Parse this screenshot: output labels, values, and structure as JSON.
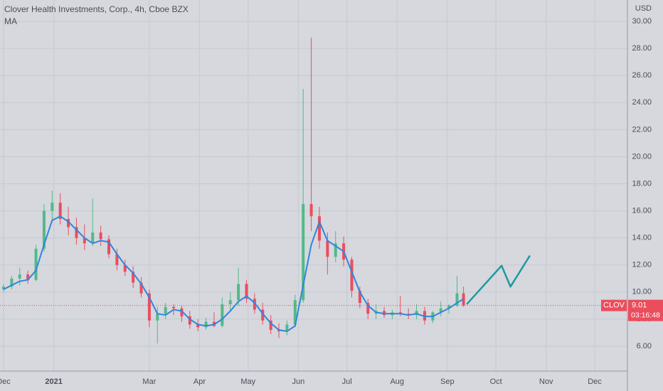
{
  "chart_data": {
    "type": "candlestick",
    "title": "Clover Health Investments, Corp., 4h, Cboe BZX",
    "currency": "USD",
    "xlim": [
      -2.2,
      385.2
    ],
    "ylim": [
      4.16,
      31.58
    ],
    "xticks": [
      {
        "value": 0,
        "label": "Dec"
      },
      {
        "value": 31,
        "label": "2021"
      },
      {
        "value": 90,
        "label": "Mar"
      },
      {
        "value": 121,
        "label": "Apr"
      },
      {
        "value": 151,
        "label": "May"
      },
      {
        "value": 182,
        "label": "Jun"
      },
      {
        "value": 212,
        "label": "Jul"
      },
      {
        "value": 243,
        "label": "Aug"
      },
      {
        "value": 274,
        "label": "Sep"
      },
      {
        "value": 304,
        "label": "Oct"
      },
      {
        "value": 335,
        "label": "Nov"
      },
      {
        "value": 365,
        "label": "Dec"
      }
    ],
    "yticks": [
      {
        "value": 6,
        "label": "6.00"
      },
      {
        "value": 8,
        "label": "8.00"
      },
      {
        "value": 10,
        "label": "10.00"
      },
      {
        "value": 12,
        "label": "12.00"
      },
      {
        "value": 14,
        "label": "14.00"
      },
      {
        "value": 16,
        "label": "16.00"
      },
      {
        "value": 18,
        "label": "18.00"
      },
      {
        "value": 20,
        "label": "20.00"
      },
      {
        "value": 22,
        "label": "22.00"
      },
      {
        "value": 24,
        "label": "24.00"
      },
      {
        "value": 26,
        "label": "26.00"
      },
      {
        "value": 28,
        "label": "28.00"
      },
      {
        "value": 30,
        "label": "30.00"
      }
    ],
    "grid": true,
    "up_color": "#53b987",
    "down_color": "#eb4d5c",
    "last_price": 9.01,
    "countdown": "03:16:48",
    "series": [
      {
        "name": "CLOV",
        "x": [
          0,
          5,
          10,
          15,
          20,
          25,
          30,
          35,
          40,
          45,
          50,
          55,
          60,
          65,
          70,
          75,
          80,
          85,
          90,
          95,
          100,
          105,
          110,
          115,
          120,
          125,
          130,
          135,
          140,
          145,
          150,
          155,
          160,
          165,
          170,
          175,
          180,
          185,
          190,
          195,
          200,
          205,
          210,
          215,
          220,
          225,
          230,
          235,
          240,
          245,
          250,
          255,
          260,
          265,
          270,
          275,
          280,
          284
        ],
        "open": [
          10.2,
          10.4,
          11.0,
          11.3,
          10.9,
          13.2,
          16.0,
          16.6,
          15.4,
          14.8,
          14.0,
          13.6,
          14.4,
          13.9,
          12.8,
          12.0,
          11.5,
          10.7,
          9.9,
          7.9,
          8.4,
          8.9,
          8.8,
          8.2,
          7.6,
          7.4,
          7.8,
          7.5,
          9.1,
          9.4,
          10.6,
          9.5,
          8.7,
          7.9,
          7.2,
          7.1,
          7.6,
          9.4,
          16.5,
          15.6,
          13.8,
          12.6,
          13.6,
          12.4,
          10.1,
          9.2,
          8.4,
          8.6,
          8.3,
          8.5,
          8.4,
          8.3,
          8.6,
          7.9,
          8.5,
          8.8,
          9.0,
          9.9
        ],
        "high": [
          10.6,
          11.2,
          11.8,
          11.6,
          13.5,
          16.5,
          17.5,
          17.3,
          16.3,
          15.5,
          15.0,
          16.9,
          14.9,
          14.2,
          13.2,
          12.4,
          11.9,
          11.1,
          10.2,
          8.9,
          9.2,
          9.1,
          9.0,
          8.6,
          8.0,
          8.1,
          8.5,
          9.6,
          10.0,
          11.8,
          10.9,
          9.9,
          9.2,
          8.3,
          7.7,
          7.9,
          9.8,
          25.0,
          28.8,
          16.3,
          14.4,
          14.5,
          14.1,
          12.6,
          10.4,
          9.5,
          9.1,
          8.9,
          8.7,
          9.7,
          8.8,
          9.1,
          8.9,
          8.6,
          9.3,
          9.1,
          11.2,
          10.4
        ],
        "low": [
          10.0,
          10.2,
          10.5,
          10.6,
          10.8,
          13.0,
          15.2,
          15.0,
          14.2,
          13.5,
          13.1,
          13.4,
          13.4,
          12.5,
          11.6,
          11.2,
          10.3,
          9.6,
          7.4,
          6.2,
          8.0,
          8.3,
          7.8,
          7.3,
          7.1,
          7.2,
          7.4,
          7.4,
          8.6,
          9.0,
          9.2,
          8.4,
          7.6,
          6.9,
          6.6,
          6.8,
          7.4,
          9.2,
          14.5,
          13.2,
          11.3,
          12.2,
          11.9,
          9.6,
          8.8,
          8.0,
          8.0,
          8.1,
          8.0,
          8.2,
          8.0,
          8.0,
          7.6,
          7.7,
          8.2,
          8.4,
          8.9,
          8.9
        ],
        "close": [
          10.4,
          11.0,
          11.3,
          10.9,
          13.2,
          16.0,
          16.6,
          15.4,
          14.8,
          14.0,
          13.6,
          14.4,
          13.9,
          12.8,
          12.0,
          11.5,
          10.7,
          9.9,
          7.9,
          8.4,
          8.9,
          8.8,
          8.2,
          7.6,
          7.4,
          7.8,
          7.5,
          9.1,
          9.4,
          10.6,
          9.5,
          8.7,
          7.9,
          7.2,
          7.1,
          7.6,
          9.4,
          16.5,
          15.6,
          13.8,
          12.6,
          13.6,
          12.4,
          10.1,
          9.2,
          8.4,
          8.6,
          8.3,
          8.5,
          8.4,
          8.3,
          8.6,
          7.9,
          8.5,
          8.8,
          9.0,
          9.9,
          9.01
        ]
      },
      {
        "name": "MA",
        "color": "#2e86de",
        "x": [
          0,
          5,
          10,
          15,
          20,
          25,
          30,
          35,
          40,
          45,
          50,
          55,
          60,
          65,
          70,
          75,
          80,
          85,
          90,
          95,
          100,
          105,
          110,
          115,
          120,
          125,
          130,
          135,
          140,
          145,
          150,
          155,
          160,
          165,
          170,
          175,
          180,
          185,
          190,
          195,
          200,
          205,
          210,
          215,
          220,
          225,
          230,
          235,
          240,
          245,
          250,
          255,
          260,
          265,
          270,
          275,
          280,
          284
        ],
        "values": [
          10.2,
          10.5,
          10.8,
          10.9,
          11.6,
          13.5,
          15.3,
          15.6,
          15.2,
          14.6,
          14.0,
          13.6,
          13.8,
          13.7,
          12.8,
          12.0,
          11.4,
          10.6,
          9.6,
          8.4,
          8.3,
          8.7,
          8.6,
          8.0,
          7.6,
          7.5,
          7.6,
          8.0,
          8.6,
          9.3,
          9.7,
          9.2,
          8.4,
          7.7,
          7.2,
          7.1,
          7.5,
          10.5,
          13.5,
          15.2,
          13.8,
          13.4,
          13.0,
          11.5,
          10.0,
          9.0,
          8.5,
          8.4,
          8.4,
          8.4,
          8.3,
          8.4,
          8.2,
          8.2,
          8.5,
          8.8,
          9.2,
          9.5
        ]
      },
      {
        "color": "#1e9aa0",
        "x": [
          286,
          307.5,
          313,
          325
        ],
        "values": [
          9.1,
          11.95,
          10.4,
          12.7
        ]
      }
    ]
  }
}
